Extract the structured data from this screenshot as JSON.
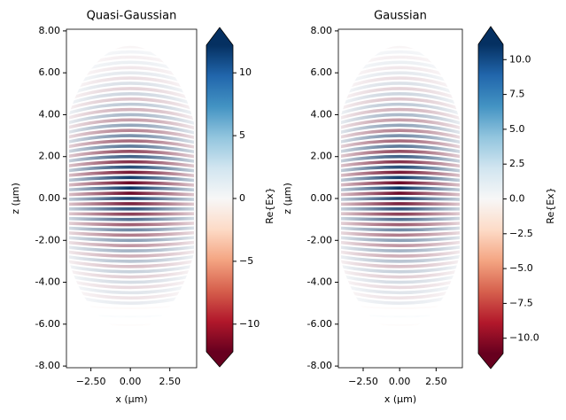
{
  "chart_data": [
    {
      "type": "heatmap",
      "title": "Quasi-Gaussian",
      "xlabel": "x (µm)",
      "ylabel": "z (µm)",
      "xlim": [
        -4.05,
        4.2
      ],
      "ylim": [
        -8.08,
        8.08
      ],
      "xticks": [
        {
          "value": -2.5,
          "label": "−2.50"
        },
        {
          "value": 0,
          "label": "0.00"
        },
        {
          "value": 2.5,
          "label": "2.50"
        }
      ],
      "yticks": [
        {
          "value": 8,
          "label": "8.00"
        },
        {
          "value": 6,
          "label": "6.00"
        },
        {
          "value": 4,
          "label": "4.00"
        },
        {
          "value": 2,
          "label": "2.00"
        },
        {
          "value": 0,
          "label": "0.00"
        },
        {
          "value": -2,
          "label": "-2.00"
        },
        {
          "value": -4,
          "label": "-4.00"
        },
        {
          "value": -6,
          "label": "-6.00"
        },
        {
          "value": -8,
          "label": "-8.00"
        }
      ],
      "colorbar": {
        "label": "Re{Ex}",
        "colormap": "RdBu",
        "clim": [
          -12.2,
          12.2
        ],
        "ticks": [
          {
            "value": -10,
            "label": "−10"
          },
          {
            "value": -5,
            "label": "−5"
          },
          0,
          5,
          10
        ]
      }
    },
    {
      "type": "heatmap",
      "title": "Gaussian",
      "xlabel": "x (µm)",
      "ylabel": "z (µm)",
      "xlim": [
        -4.2,
        4.3
      ],
      "ylim": [
        -8.08,
        8.08
      ],
      "xticks": [
        {
          "value": -2.5,
          "label": "−2.50"
        },
        {
          "value": 0,
          "label": "0.00"
        },
        {
          "value": 2.5,
          "label": "2.50"
        }
      ],
      "yticks": [
        {
          "value": 8,
          "label": "8.00"
        },
        {
          "value": 6,
          "label": "6.00"
        },
        {
          "value": 4,
          "label": "4.00"
        },
        {
          "value": 2,
          "label": "2.00"
        },
        {
          "value": 0,
          "label": "0.00"
        },
        {
          "value": -2,
          "label": "-2.00"
        },
        {
          "value": -4,
          "label": "-4.00"
        },
        {
          "value": -6,
          "label": "-6.00"
        },
        {
          "value": -8,
          "label": "-8.00"
        }
      ],
      "colorbar": {
        "label": "Re{Ex}",
        "colormap": "RdBu",
        "clim": [
          -11.1,
          11.1
        ],
        "ticks": [
          {
            "value": -10,
            "label": "−10.0"
          },
          {
            "value": -7.5,
            "label": "−7.5"
          },
          {
            "value": -5,
            "label": "−5.0"
          },
          {
            "value": -2.5,
            "label": "−2.5"
          },
          {
            "value": 0,
            "label": "0.0"
          },
          {
            "value": 2.5,
            "label": "2.5"
          },
          {
            "value": 5,
            "label": "5.0"
          },
          {
            "value": 7.5,
            "label": "7.5"
          },
          {
            "value": 10,
            "label": "10.0"
          }
        ]
      }
    }
  ]
}
